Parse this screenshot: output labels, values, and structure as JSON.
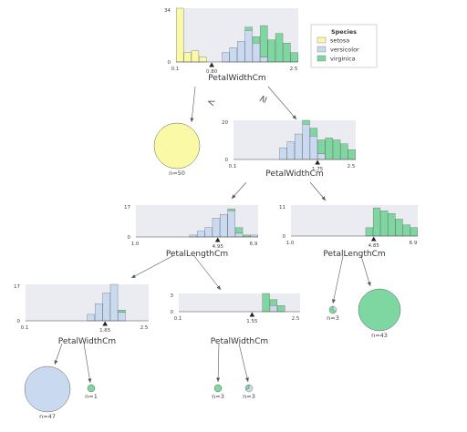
{
  "colors": {
    "setosa": "#f9f9a6",
    "versicolor": "#c9daf0",
    "virginica": "#7ed6a0",
    "panel": "#ebebf2",
    "edge": "#555555"
  },
  "legend": {
    "title": "Species",
    "items": [
      {
        "label": "setosa",
        "color": "#f9f9a6"
      },
      {
        "label": "versicolor",
        "color": "#c9daf0"
      },
      {
        "label": "virginica",
        "color": "#7ed6a0"
      }
    ]
  },
  "operators": {
    "lt": "<",
    "ge": "≥"
  },
  "nodes": [
    {
      "id": "root",
      "feature": "PetalWidthCm",
      "split": "0.80",
      "split_value": 0.8,
      "ymax_label": "34",
      "ymin_label": "0",
      "ymax": 34,
      "xmin_label": "0.1",
      "xmax_label": "2.5",
      "xmin": 0.1,
      "xmax": 2.5,
      "bins": [
        {
          "s": 34,
          "c": 0,
          "v": 0
        },
        {
          "s": 6,
          "c": 0,
          "v": 0
        },
        {
          "s": 7,
          "c": 0,
          "v": 0
        },
        {
          "s": 3,
          "c": 0,
          "v": 0
        },
        {
          "s": 0,
          "c": 0,
          "v": 0
        },
        {
          "s": 0,
          "c": 0,
          "v": 0
        },
        {
          "s": 0,
          "c": 6,
          "v": 0
        },
        {
          "s": 0,
          "c": 9,
          "v": 0
        },
        {
          "s": 0,
          "c": 13,
          "v": 0
        },
        {
          "s": 0,
          "c": 20,
          "v": 2
        },
        {
          "s": 0,
          "c": 12,
          "v": 4
        },
        {
          "s": 0,
          "c": 3,
          "v": 20
        },
        {
          "s": 0,
          "c": 0,
          "v": 14
        },
        {
          "s": 0,
          "c": 0,
          "v": 18
        },
        {
          "s": 0,
          "c": 0,
          "v": 12
        },
        {
          "s": 0,
          "c": 0,
          "v": 6
        }
      ]
    },
    {
      "id": "n1",
      "feature": "PetalWidthCm",
      "split": "1.75",
      "split_value": 1.75,
      "ymax_label": "20",
      "ymin_label": "0",
      "ymax": 20,
      "xmin_label": "0.1",
      "xmax_label": "2.5",
      "xmin": 0.1,
      "xmax": 2.5,
      "bins": [
        {
          "s": 0,
          "c": 0,
          "v": 0
        },
        {
          "s": 0,
          "c": 0,
          "v": 0
        },
        {
          "s": 0,
          "c": 0,
          "v": 0
        },
        {
          "s": 0,
          "c": 0,
          "v": 0
        },
        {
          "s": 0,
          "c": 0,
          "v": 0
        },
        {
          "s": 0,
          "c": 0,
          "v": 0
        },
        {
          "s": 0,
          "c": 6,
          "v": 0
        },
        {
          "s": 0,
          "c": 9,
          "v": 0
        },
        {
          "s": 0,
          "c": 13,
          "v": 0
        },
        {
          "s": 0,
          "c": 18,
          "v": 2
        },
        {
          "s": 0,
          "c": 12,
          "v": 4
        },
        {
          "s": 0,
          "c": 3,
          "v": 7
        },
        {
          "s": 0,
          "c": 0,
          "v": 11
        },
        {
          "s": 0,
          "c": 0,
          "v": 10
        },
        {
          "s": 0,
          "c": 0,
          "v": 8
        },
        {
          "s": 0,
          "c": 0,
          "v": 5
        }
      ]
    },
    {
      "id": "n2",
      "feature": "PetalLengthCm",
      "split": "4.95",
      "split_value": 4.95,
      "ymax_label": "17",
      "ymin_label": "0",
      "ymax": 17,
      "xmin_label": "1.0",
      "xmax_label": "6.9",
      "xmin": 1.0,
      "xmax": 6.9,
      "bins": [
        {
          "s": 0,
          "c": 0,
          "v": 0
        },
        {
          "s": 0,
          "c": 0,
          "v": 0
        },
        {
          "s": 0,
          "c": 0,
          "v": 0
        },
        {
          "s": 0,
          "c": 0,
          "v": 0
        },
        {
          "s": 0,
          "c": 0,
          "v": 0
        },
        {
          "s": 0,
          "c": 0,
          "v": 0
        },
        {
          "s": 0,
          "c": 0,
          "v": 0
        },
        {
          "s": 0,
          "c": 1,
          "v": 0
        },
        {
          "s": 0,
          "c": 3,
          "v": 0
        },
        {
          "s": 0,
          "c": 5,
          "v": 0
        },
        {
          "s": 0,
          "c": 10,
          "v": 0
        },
        {
          "s": 0,
          "c": 12,
          "v": 0
        },
        {
          "s": 0,
          "c": 14,
          "v": 1
        },
        {
          "s": 0,
          "c": 2,
          "v": 3
        },
        {
          "s": 0,
          "c": 0,
          "v": 1
        },
        {
          "s": 0,
          "c": 1,
          "v": 0
        }
      ]
    },
    {
      "id": "n3",
      "feature": "PetalLengthCm",
      "split": "4.85",
      "split_value": 4.85,
      "ymax_label": "11",
      "ymin_label": "0",
      "ymax": 11,
      "xmin_label": "1.0",
      "xmax_label": "6.9",
      "xmin": 1.0,
      "xmax": 6.9,
      "bins": [
        {
          "s": 0,
          "c": 0,
          "v": 0
        },
        {
          "s": 0,
          "c": 0,
          "v": 0
        },
        {
          "s": 0,
          "c": 0,
          "v": 0
        },
        {
          "s": 0,
          "c": 0,
          "v": 0
        },
        {
          "s": 0,
          "c": 0,
          "v": 0
        },
        {
          "s": 0,
          "c": 0,
          "v": 0
        },
        {
          "s": 0,
          "c": 0,
          "v": 0
        },
        {
          "s": 0,
          "c": 0,
          "v": 0
        },
        {
          "s": 0,
          "c": 0,
          "v": 0
        },
        {
          "s": 0,
          "c": 0,
          "v": 0
        },
        {
          "s": 0,
          "c": 0,
          "v": 3
        },
        {
          "s": 0,
          "c": 0,
          "v": 10
        },
        {
          "s": 0,
          "c": 0,
          "v": 9
        },
        {
          "s": 0,
          "c": 0,
          "v": 8
        },
        {
          "s": 0,
          "c": 0,
          "v": 6
        },
        {
          "s": 0,
          "c": 0,
          "v": 4
        },
        {
          "s": 0,
          "c": 0,
          "v": 3
        }
      ]
    },
    {
      "id": "n4",
      "feature": "PetalWidthCm",
      "split": "1.65",
      "split_value": 1.65,
      "ymax_label": "17",
      "ymin_label": "0",
      "ymax": 17,
      "xmin_label": "0.1",
      "xmax_label": "2.5",
      "xmin": 0.1,
      "xmax": 2.5,
      "bins": [
        {
          "s": 0,
          "c": 0,
          "v": 0
        },
        {
          "s": 0,
          "c": 0,
          "v": 0
        },
        {
          "s": 0,
          "c": 0,
          "v": 0
        },
        {
          "s": 0,
          "c": 0,
          "v": 0
        },
        {
          "s": 0,
          "c": 0,
          "v": 0
        },
        {
          "s": 0,
          "c": 0,
          "v": 0
        },
        {
          "s": 0,
          "c": 0,
          "v": 0
        },
        {
          "s": 0,
          "c": 0,
          "v": 0
        },
        {
          "s": 0,
          "c": 3,
          "v": 0
        },
        {
          "s": 0,
          "c": 8,
          "v": 0
        },
        {
          "s": 0,
          "c": 13,
          "v": 0
        },
        {
          "s": 0,
          "c": 17,
          "v": 0
        },
        {
          "s": 0,
          "c": 4,
          "v": 1
        },
        {
          "s": 0,
          "c": 0,
          "v": 0
        },
        {
          "s": 0,
          "c": 0,
          "v": 0
        },
        {
          "s": 0,
          "c": 0,
          "v": 0
        }
      ]
    },
    {
      "id": "n5",
      "feature": "PetalWidthCm",
      "split": "1.55",
      "split_value": 1.55,
      "ymax_label": "3",
      "ymin_label": "0",
      "ymax": 3,
      "xmin_label": "0.1",
      "xmax_label": "2.5",
      "xmin": 0.1,
      "xmax": 2.5,
      "bins": [
        {
          "s": 0,
          "c": 0,
          "v": 0
        },
        {
          "s": 0,
          "c": 0,
          "v": 0
        },
        {
          "s": 0,
          "c": 0,
          "v": 0
        },
        {
          "s": 0,
          "c": 0,
          "v": 0
        },
        {
          "s": 0,
          "c": 0,
          "v": 0
        },
        {
          "s": 0,
          "c": 0,
          "v": 0
        },
        {
          "s": 0,
          "c": 0,
          "v": 0
        },
        {
          "s": 0,
          "c": 0,
          "v": 0
        },
        {
          "s": 0,
          "c": 0,
          "v": 0
        },
        {
          "s": 0,
          "c": 0,
          "v": 0
        },
        {
          "s": 0,
          "c": 0,
          "v": 0
        },
        {
          "s": 0,
          "c": 0,
          "v": 3
        },
        {
          "s": 0,
          "c": 1,
          "v": 1
        },
        {
          "s": 0,
          "c": 0,
          "v": 1
        },
        {
          "s": 0,
          "c": 0,
          "v": 0
        },
        {
          "s": 0,
          "c": 0,
          "v": 0
        }
      ]
    }
  ],
  "leaves": [
    {
      "id": "leaf-setosa",
      "label": "n=50",
      "n": 50,
      "setosa": 50,
      "versicolor": 0,
      "virginica": 0
    },
    {
      "id": "leaf-n3-left",
      "label": "n=3",
      "n": 3,
      "setosa": 0,
      "versicolor": 1,
      "virginica": 2
    },
    {
      "id": "leaf-n3-right",
      "label": "n=43",
      "n": 43,
      "setosa": 0,
      "versicolor": 0,
      "virginica": 43
    },
    {
      "id": "leaf-n4-left",
      "label": "n=47",
      "n": 47,
      "setosa": 0,
      "versicolor": 47,
      "virginica": 0
    },
    {
      "id": "leaf-n4-right",
      "label": "n=1",
      "n": 1,
      "setosa": 0,
      "versicolor": 0,
      "virginica": 1
    },
    {
      "id": "leaf-n5-left",
      "label": "n=3",
      "n": 3,
      "setosa": 0,
      "versicolor": 0,
      "virginica": 3
    },
    {
      "id": "leaf-n5-right",
      "label": "n=3",
      "n": 3,
      "setosa": 0,
      "versicolor": 2,
      "virginica": 1
    }
  ]
}
